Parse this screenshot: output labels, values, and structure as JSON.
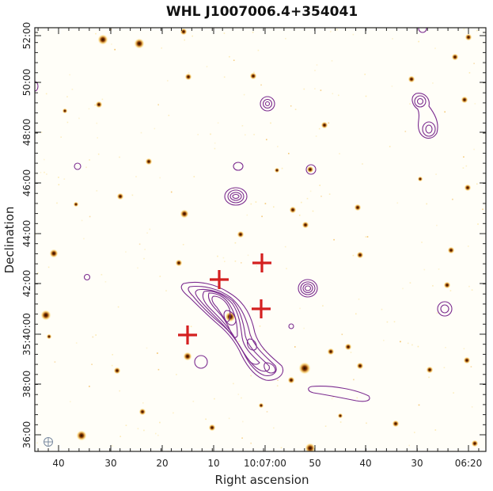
{
  "title": "WHL J1007006.4+354041",
  "xlabel": "Right ascension",
  "ylabel": "Declination",
  "x_ticks": [
    "40",
    "30",
    "20",
    "10",
    "10:07:00",
    "50",
    "40",
    "30",
    "06:20"
  ],
  "y_ticks": [
    "36:00",
    "38:00",
    "35:40:00",
    "42:00",
    "44:00",
    "46:00",
    "48:00",
    "50:00",
    "52:00"
  ],
  "colors": {
    "background": "#fffef8",
    "contour": "#7b2b8f",
    "marker": "#d42020",
    "source_dark": "#1a0800",
    "source_glow": "#f7c860"
  },
  "icons": [
    "beam-ellipse-icon"
  ]
}
